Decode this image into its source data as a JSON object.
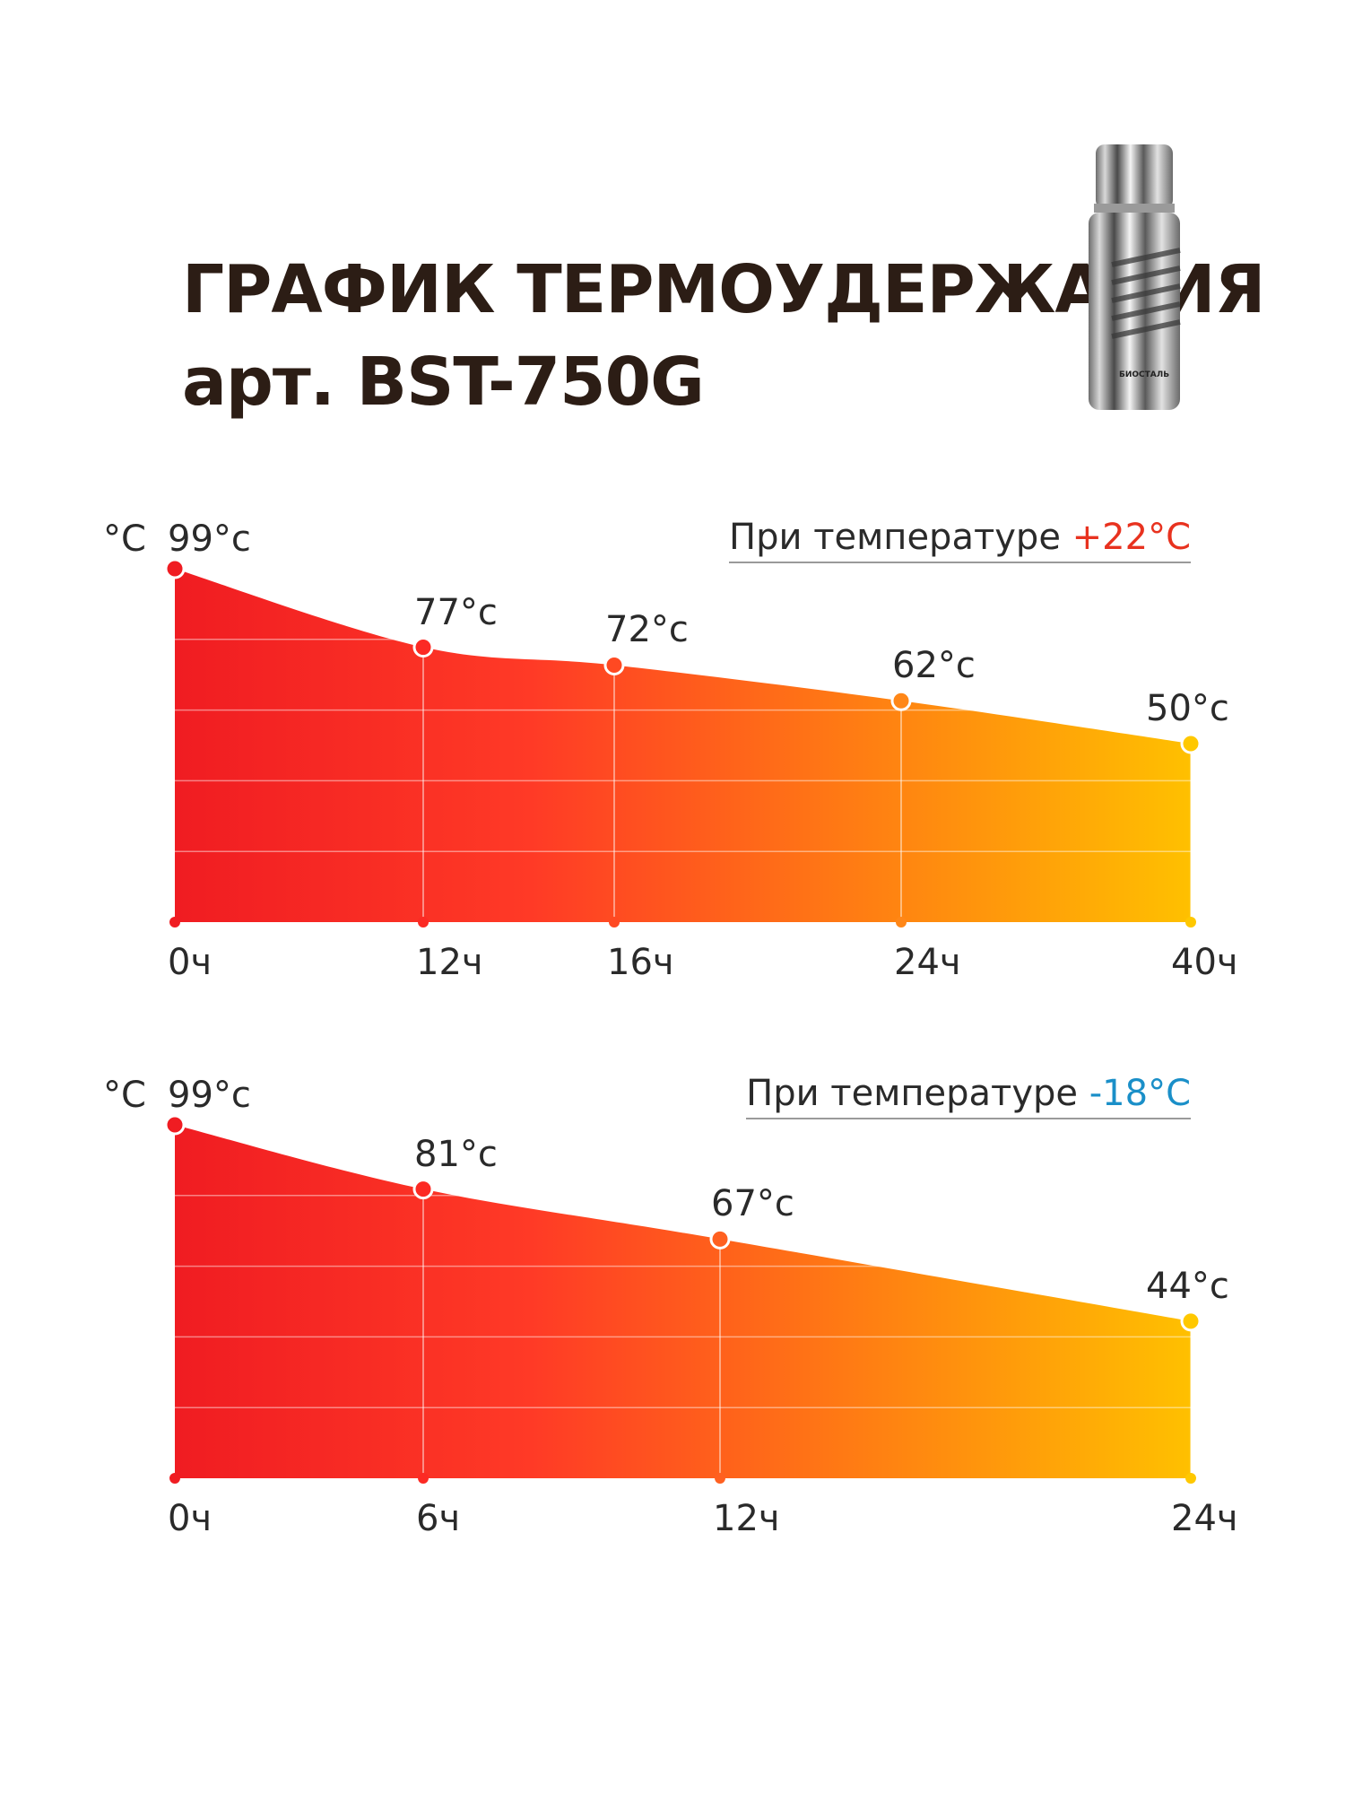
{
  "header": {
    "title_line1": "ГРАФИК ТЕРМОУДЕРЖАНИЯ",
    "title_line2": "арт. BST-750G",
    "product_image": {
      "icon": "thermos-image",
      "brand_text": "БИОСТАЛЬ"
    }
  },
  "colors": {
    "gradient_start": "#f01c22",
    "gradient_mid": "#ff3a26",
    "gradient_end": "#ffc000",
    "warm_condition": "#e8321f",
    "cold_condition": "#1a8fc8",
    "title": "#2c1d15"
  },
  "chart_data": [
    {
      "type": "area",
      "unit_label": "°C",
      "condition_label": "При температуре",
      "condition_value": "+22°C",
      "condition_color": "#e8321f",
      "categories": [
        "0ч",
        "12ч",
        "16ч",
        "24ч",
        "40ч"
      ],
      "x": [
        0,
        12,
        16,
        24,
        40
      ],
      "values": [
        99,
        77,
        72,
        62,
        50
      ],
      "value_labels": [
        "99°с",
        "77°с",
        "72°с",
        "62°с",
        "50°с"
      ],
      "ylim": [
        0,
        99
      ],
      "grid": true
    },
    {
      "type": "area",
      "unit_label": "°C",
      "condition_label": "При температуре",
      "condition_value": "-18°C",
      "condition_color": "#1a8fc8",
      "categories": [
        "0ч",
        "6ч",
        "12ч",
        "24ч"
      ],
      "x": [
        0,
        6,
        12,
        24
      ],
      "values": [
        99,
        81,
        67,
        44
      ],
      "value_labels": [
        "99°с",
        "81°с",
        "67°с",
        "44°с"
      ],
      "ylim": [
        0,
        99
      ],
      "grid": true
    }
  ]
}
